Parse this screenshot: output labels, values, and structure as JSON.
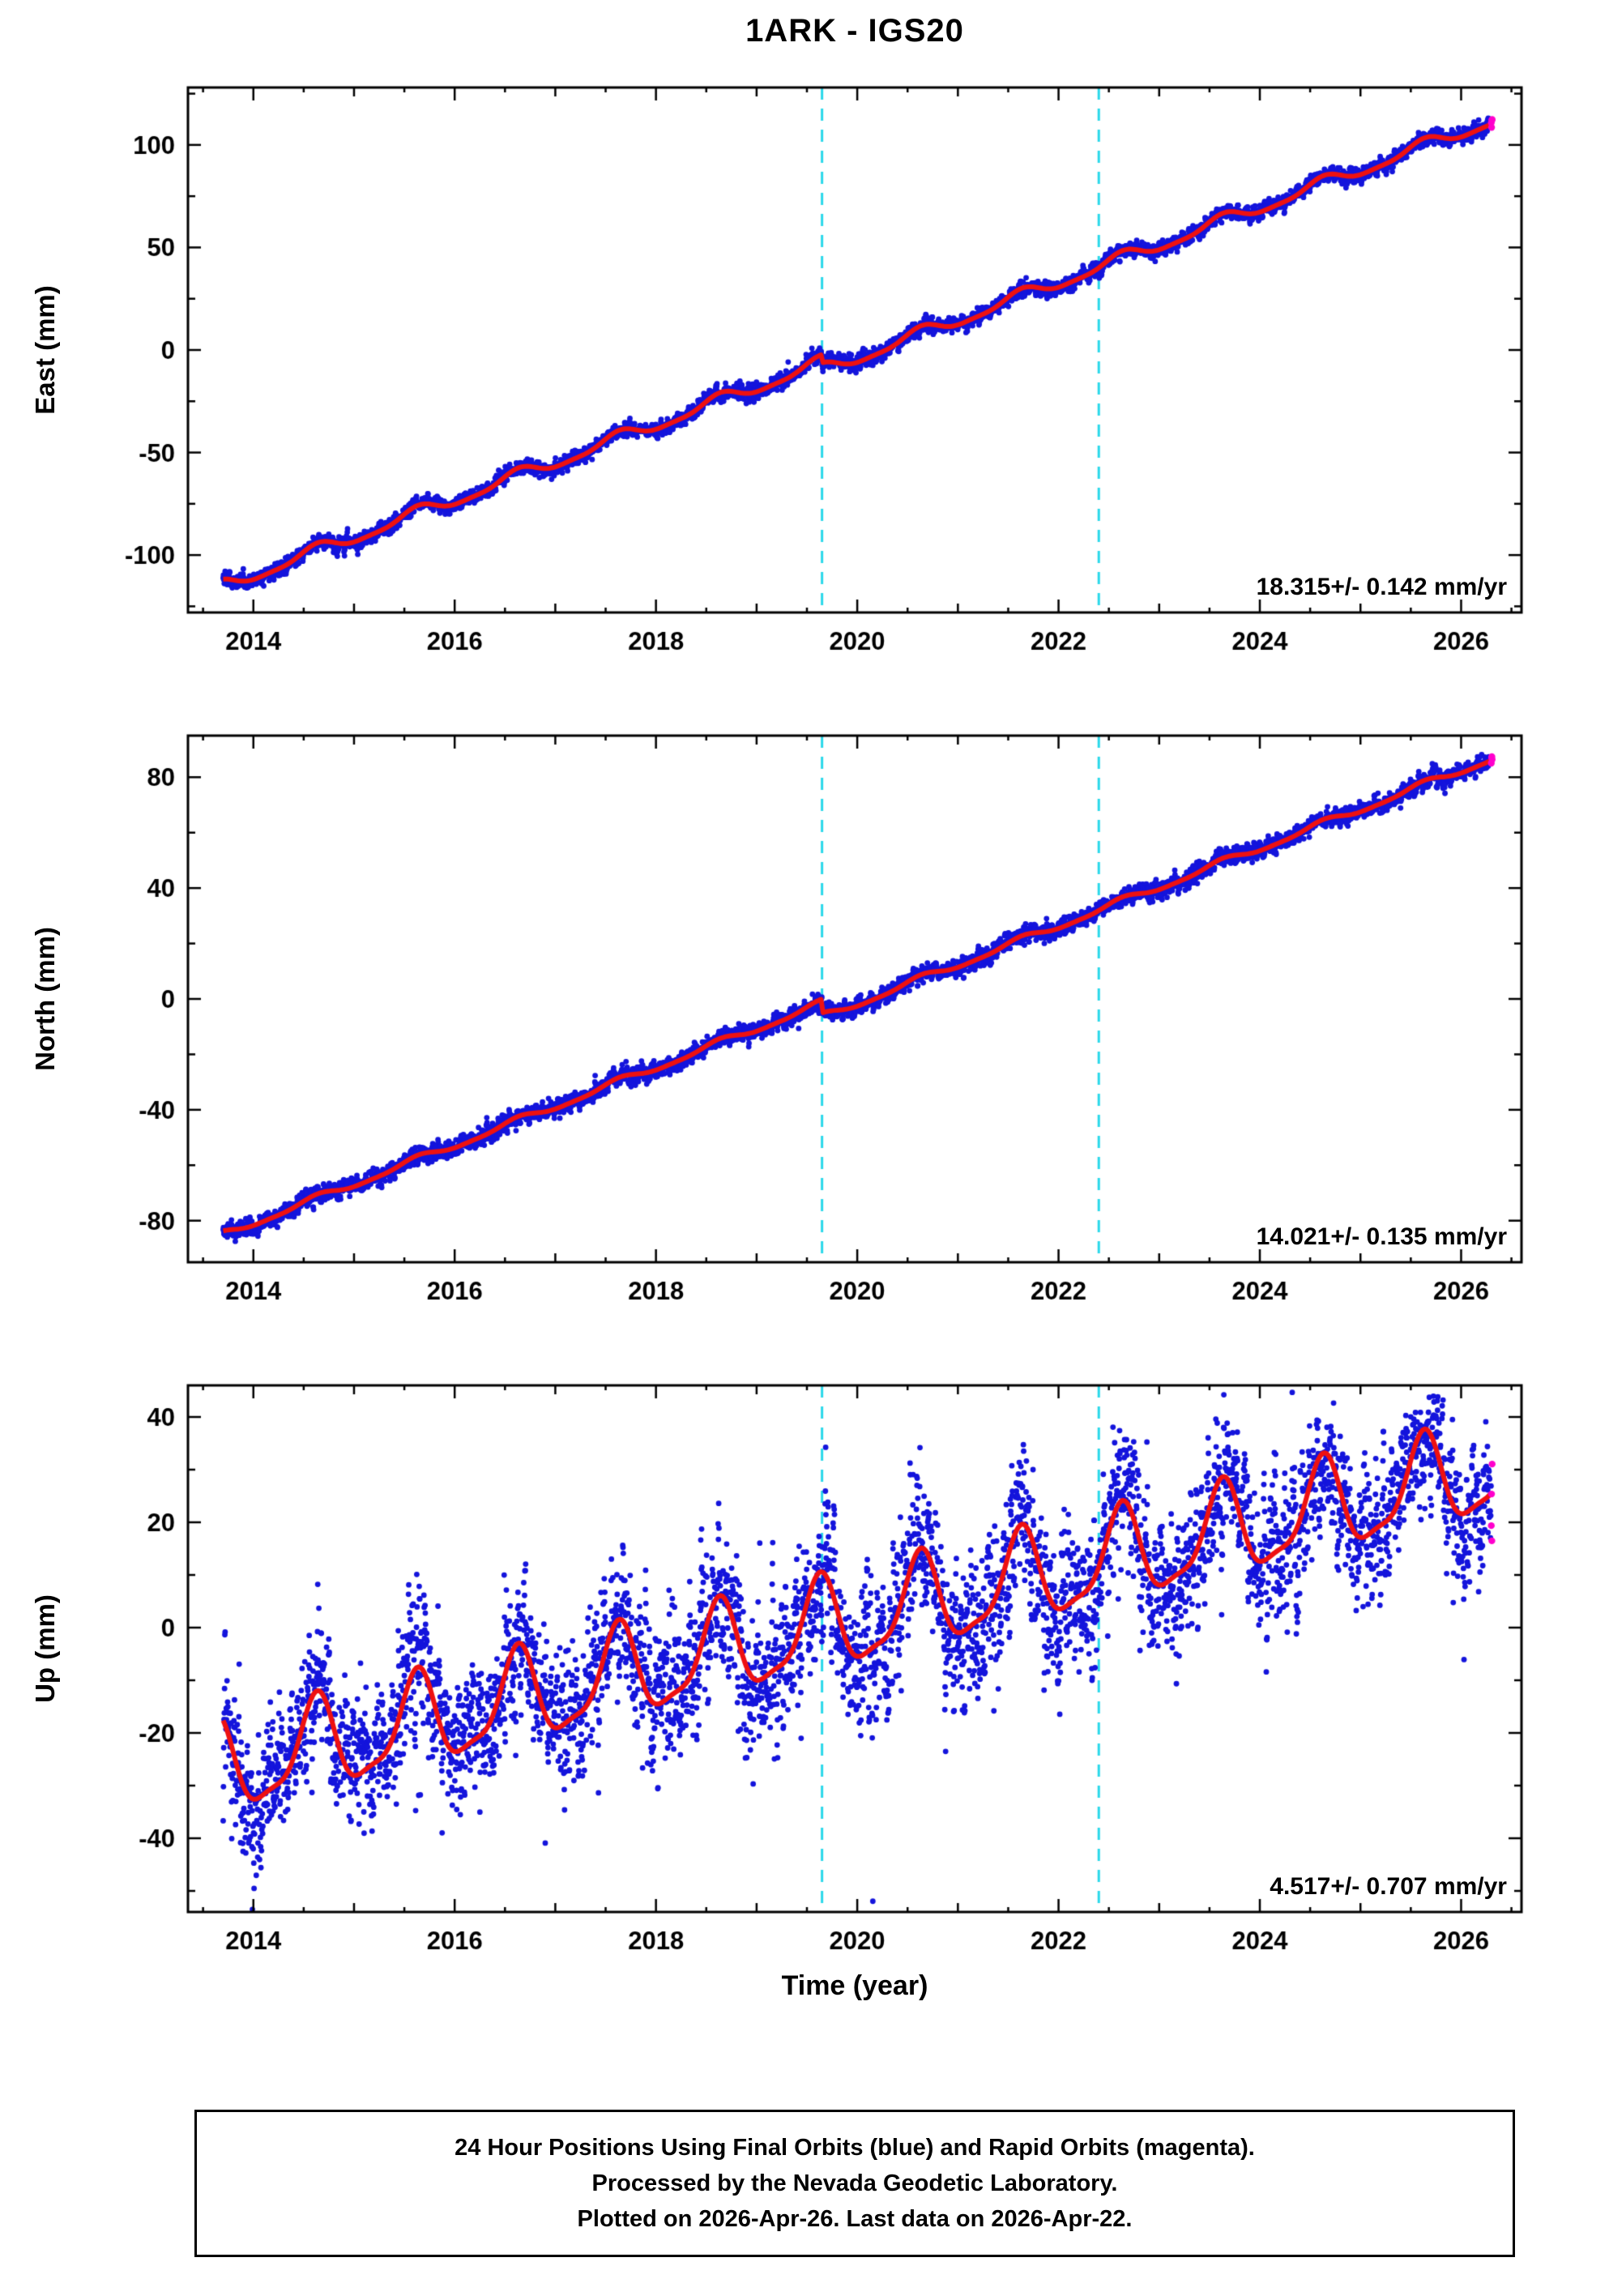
{
  "title": "1ARK - IGS20",
  "xlabel": "Time (year)",
  "footer": {
    "line1": "24 Hour Positions Using Final Orbits (blue) and Rapid Orbits (magenta).",
    "line2": "Processed by the Nevada Geodetic Laboratory.",
    "line3": "Plotted on 2026-Apr-26. Last data on 2026-Apr-22."
  },
  "colors": {
    "final_points": "#1414dc",
    "rapid_points": "#ff00cc",
    "model_line": "#ee1111",
    "event_line": "#29d8ea",
    "frame": "#000000",
    "background": "#ffffff"
  },
  "chart_data": {
    "type": "scatter",
    "title": "1ARK - IGS20",
    "xlabel": "Time (year)",
    "x_range": [
      2013.35,
      2026.6
    ],
    "x_ticks": [
      2014,
      2016,
      2018,
      2020,
      2022,
      2024,
      2026
    ],
    "x_minor_step": 0.5,
    "event_lines_x": [
      2019.65,
      2022.4
    ],
    "sampling_per_year": 365,
    "data_start_year": 2013.7,
    "data_end_year": 2026.31,
    "rapid_orbit_tail_days": 4,
    "legend": {
      "final_orbits": "blue",
      "rapid_orbits": "magenta"
    },
    "panels": [
      {
        "ylabel": "East (mm)",
        "ylim": [
          -128,
          128
        ],
        "y_ticks": [
          -100,
          -50,
          0,
          50,
          100
        ],
        "y_minor_step": 25,
        "rate_label": "18.315+/- 0.142 mm/yr",
        "rate_mm_per_yr": 18.315,
        "rate_sigma_mm_per_yr": 0.142,
        "model": {
          "value_at_start": -115,
          "rate_mm_per_yr": 18.315,
          "seasonal_amp_mm": 3.0,
          "noise_sd_mm": 1.9,
          "steps": [
            {
              "year": 2019.65,
              "offset_mm": -4
            }
          ]
        }
      },
      {
        "ylabel": "North (mm)",
        "ylim": [
          -95,
          95
        ],
        "y_ticks": [
          -80,
          -40,
          0,
          40,
          80
        ],
        "y_minor_step": 20,
        "rate_label": "14.021+/- 0.135 mm/yr",
        "rate_mm_per_yr": 14.021,
        "rate_sigma_mm_per_yr": 0.135,
        "model": {
          "value_at_start": -85,
          "rate_mm_per_yr": 14.021,
          "seasonal_amp_mm": 1.2,
          "noise_sd_mm": 1.6,
          "steps": [
            {
              "year": 2019.65,
              "offset_mm": -5
            }
          ]
        }
      },
      {
        "ylabel": "Up (mm)",
        "ylim": [
          -54,
          46
        ],
        "y_ticks": [
          -40,
          -20,
          0,
          20,
          40
        ],
        "y_minor_step": 10,
        "rate_label": "4.517+/- 0.707 mm/yr",
        "rate_mm_per_yr": 4.517,
        "rate_sigma_mm_per_yr": 0.707,
        "model": {
          "value_at_start": -27,
          "rate_mm_per_yr": 4.517,
          "seasonal_amp_mm": 8.5,
          "noise_sd_mm": 7.0,
          "steps": []
        }
      }
    ]
  }
}
